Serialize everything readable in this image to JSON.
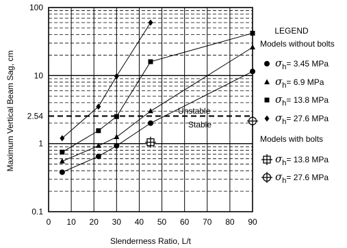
{
  "chart_data": {
    "type": "line",
    "xlabel": "Slenderness Ratio, L/t",
    "ylabel": "Maximum Vertical Beam Sag, cm",
    "x_scale": "linear",
    "y_scale": "log",
    "xlim": [
      0,
      90
    ],
    "ylim": [
      0.1,
      100
    ],
    "x_ticks": [
      "0",
      "10",
      "20",
      "30",
      "40",
      "50",
      "60",
      "70",
      "80",
      "90"
    ],
    "y_ticks": [
      {
        "value": 0.1,
        "label": "0.1"
      },
      {
        "value": 1,
        "label": "1"
      },
      {
        "value": 2.54,
        "label": "2.54"
      },
      {
        "value": 10,
        "label": "10"
      },
      {
        "value": 100,
        "label": "100"
      }
    ],
    "grid": true,
    "legend": {
      "title": "LEGEND",
      "group1_title": "Models without bolts",
      "group2_title": "Models with bolts",
      "symbol_letter": "σ",
      "symbol_sub": "h",
      "equals": "="
    },
    "series": [
      {
        "group": 1,
        "marker": "circle",
        "label_value": "3.45 MPa",
        "x": [
          6,
          22,
          30,
          45,
          90
        ],
        "y": [
          0.38,
          0.65,
          0.93,
          2.0,
          11.5
        ]
      },
      {
        "group": 1,
        "marker": "triangle",
        "label_value": "6.9 MPa",
        "x": [
          6,
          22,
          30,
          45,
          90
        ],
        "y": [
          0.55,
          0.93,
          1.25,
          3.0,
          26
        ]
      },
      {
        "group": 1,
        "marker": "square",
        "label_value": "13.8 MPa",
        "x": [
          6,
          22,
          30,
          45,
          90
        ],
        "y": [
          0.75,
          1.55,
          2.5,
          16,
          42
        ]
      },
      {
        "group": 1,
        "marker": "diamond",
        "label_value": "27.6 MPa",
        "x": [
          6,
          22,
          30,
          45
        ],
        "y": [
          1.2,
          3.5,
          9.8,
          60
        ]
      },
      {
        "group": 2,
        "marker": "square-cross",
        "label_value": "13.8 MPa",
        "x": [
          45
        ],
        "y": [
          1.05
        ]
      },
      {
        "group": 2,
        "marker": "circle-cross",
        "label_value": "27.6 MPa",
        "x": [
          90
        ],
        "y": [
          2.15
        ]
      }
    ],
    "threshold": {
      "value": 2.54,
      "label_above": "Unstable",
      "label_below": "Stable"
    }
  }
}
